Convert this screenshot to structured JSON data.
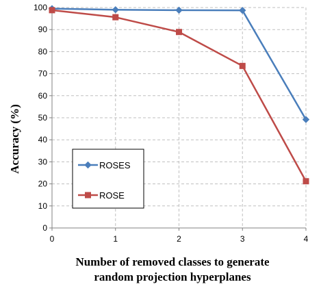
{
  "chart_data": {
    "type": "line",
    "title": "",
    "xlabel_lines": [
      "Number of removed classes to generate",
      "random projection hyperplanes"
    ],
    "ylabel": "Accuracy (%)",
    "x": [
      0,
      1,
      2,
      3,
      4
    ],
    "xlim": [
      0,
      4
    ],
    "ylim": [
      0,
      100
    ],
    "xticks": [
      "0",
      "1",
      "2",
      "3",
      "4"
    ],
    "yticks": [
      "0",
      "10",
      "20",
      "30",
      "40",
      "50",
      "60",
      "70",
      "80",
      "90",
      "100"
    ],
    "grid": true,
    "legend_position": "lower-left",
    "series": [
      {
        "name": "ROSES",
        "values": [
          99.5,
          99.0,
          98.8,
          98.7,
          49.2
        ],
        "color": "#4a7ebb",
        "marker": "diamond"
      },
      {
        "name": "ROSE",
        "values": [
          98.8,
          95.6,
          88.9,
          73.5,
          21.2
        ],
        "color": "#be4b48",
        "marker": "square"
      }
    ]
  }
}
